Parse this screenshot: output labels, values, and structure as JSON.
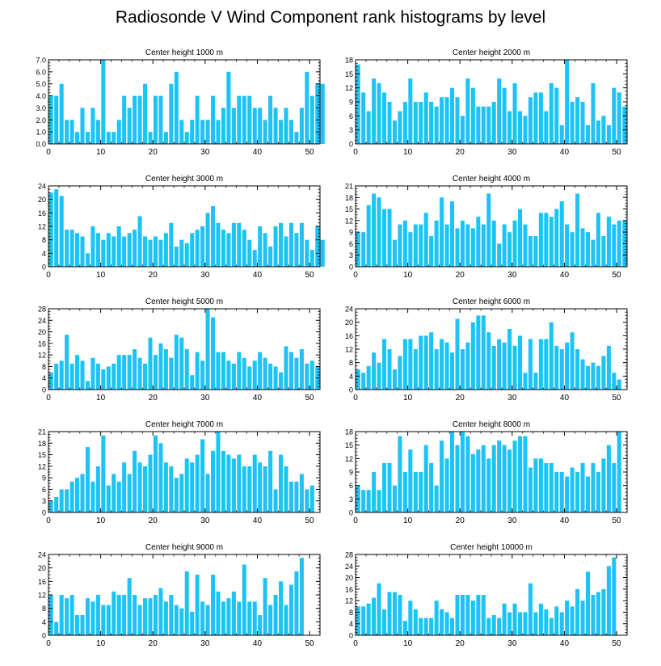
{
  "title": "Radiosonde V Wind Component rank histograms by level",
  "colors": {
    "bar": "#1ec3f5",
    "axis": "#000000",
    "background": "#ffffff"
  },
  "chart_data": [
    {
      "type": "bar",
      "title": "Center height 1000 m",
      "xlim": [
        0,
        52
      ],
      "ylim": [
        0,
        7
      ],
      "xticks": [
        0,
        10,
        20,
        30,
        40,
        50
      ],
      "yticks": [
        0,
        1,
        2,
        3,
        4,
        5,
        6,
        7
      ],
      "ytick_labels": [
        "0.0",
        "1.0",
        "2.0",
        "3.0",
        "4.0",
        "5.0",
        "6.0",
        "7.0"
      ],
      "values": [
        4,
        4,
        5,
        2,
        2,
        1,
        3,
        1,
        3,
        2,
        7,
        1,
        1,
        2,
        4,
        3,
        4,
        4,
        5,
        1,
        4,
        4,
        1,
        5,
        6,
        2,
        1,
        2,
        4,
        2,
        2,
        4,
        2,
        3,
        6,
        3,
        4,
        4,
        4,
        3,
        3,
        2,
        4,
        3,
        2,
        3,
        2,
        1,
        3,
        6,
        4,
        5,
        5
      ]
    },
    {
      "type": "bar",
      "title": "Center height 2000 m",
      "xlim": [
        0,
        52
      ],
      "ylim": [
        0,
        18
      ],
      "xticks": [
        0,
        10,
        20,
        30,
        40,
        50
      ],
      "yticks": [
        0,
        3,
        6,
        9,
        12,
        15,
        18
      ],
      "ytick_labels": [
        "0",
        "3",
        "6",
        "9",
        "12",
        "15",
        "18"
      ],
      "values": [
        17,
        11,
        7,
        14,
        13,
        11,
        9,
        5,
        7,
        9,
        14,
        9,
        9,
        11,
        9,
        8,
        10,
        10,
        12,
        10,
        6,
        14,
        12,
        8,
        8,
        8,
        9,
        14,
        12,
        7,
        13,
        7,
        6,
        10,
        11,
        11,
        7,
        13,
        12,
        4,
        18,
        9,
        10,
        9,
        4,
        13,
        5,
        6,
        4,
        12,
        11,
        8
      ]
    },
    {
      "type": "bar",
      "title": "Center height 3000 m",
      "xlim": [
        0,
        52
      ],
      "ylim": [
        0,
        24
      ],
      "xticks": [
        0,
        10,
        20,
        30,
        40,
        50
      ],
      "yticks": [
        0,
        4,
        8,
        12,
        16,
        20,
        24
      ],
      "ytick_labels": [
        "0",
        "4",
        "8",
        "12",
        "16",
        "20",
        "24"
      ],
      "values": [
        22,
        23,
        21,
        11,
        11,
        10,
        9,
        4,
        12,
        10,
        8,
        10,
        9,
        12,
        9,
        10,
        11,
        15,
        9,
        8,
        9,
        8,
        10,
        13,
        6,
        8,
        7,
        10,
        11,
        12,
        16,
        18,
        13,
        11,
        10,
        13,
        13,
        11,
        8,
        5,
        12,
        10,
        6,
        12,
        13,
        9,
        13,
        10,
        13,
        8,
        5,
        12,
        8
      ]
    },
    {
      "type": "bar",
      "title": "Center height 4000 m",
      "xlim": [
        0,
        52
      ],
      "ylim": [
        0,
        21
      ],
      "xticks": [
        0,
        10,
        20,
        30,
        40,
        50
      ],
      "yticks": [
        0,
        3,
        6,
        9,
        12,
        15,
        18,
        21
      ],
      "ytick_labels": [
        "0",
        "3",
        "6",
        "9",
        "12",
        "15",
        "18",
        "21"
      ],
      "values": [
        9,
        9,
        16,
        19,
        18,
        15,
        15,
        7,
        11,
        12,
        9,
        11,
        11,
        14,
        8,
        12,
        18,
        11,
        17,
        10,
        12,
        11,
        10,
        13,
        11,
        19,
        12,
        6,
        11,
        9,
        12,
        15,
        11,
        8,
        8,
        14,
        14,
        13,
        15,
        17,
        11,
        9,
        19,
        10,
        9,
        7,
        14,
        8,
        13,
        11,
        12,
        12
      ]
    },
    {
      "type": "bar",
      "title": "Center height 5000 m",
      "xlim": [
        0,
        52
      ],
      "ylim": [
        0,
        28
      ],
      "xticks": [
        0,
        10,
        20,
        30,
        40,
        50
      ],
      "yticks": [
        0,
        4,
        8,
        12,
        16,
        20,
        24,
        28
      ],
      "ytick_labels": [
        "0",
        "4",
        "8",
        "12",
        "16",
        "20",
        "24",
        "28"
      ],
      "values": [
        6,
        9,
        10,
        19,
        9,
        12,
        10,
        3,
        11,
        9,
        7,
        8,
        9,
        12,
        12,
        12,
        14,
        11,
        9,
        18,
        12,
        16,
        14,
        11,
        19,
        18,
        14,
        5,
        13,
        10,
        28,
        25,
        13,
        13,
        10,
        9,
        13,
        11,
        8,
        10,
        13,
        11,
        9,
        8,
        6,
        15,
        13,
        11,
        14,
        9,
        10,
        8
      ]
    },
    {
      "type": "bar",
      "title": "Center height 6000 m",
      "xlim": [
        0,
        52
      ],
      "ylim": [
        0,
        24
      ],
      "xticks": [
        0,
        10,
        20,
        30,
        40,
        50
      ],
      "yticks": [
        0,
        4,
        8,
        12,
        16,
        20,
        24
      ],
      "ytick_labels": [
        "0",
        "4",
        "8",
        "12",
        "16",
        "20",
        "24"
      ],
      "values": [
        6,
        5,
        7,
        11,
        8,
        15,
        12,
        6,
        10,
        15,
        15,
        12,
        16,
        16,
        17,
        12,
        15,
        14,
        11,
        21,
        12,
        14,
        20,
        22,
        22,
        17,
        13,
        15,
        14,
        18,
        13,
        16,
        5,
        15,
        5,
        15,
        15,
        20,
        13,
        12,
        14,
        17,
        12,
        9,
        7,
        8,
        7,
        10,
        13,
        5,
        3
      ]
    },
    {
      "type": "bar",
      "title": "Center height 7000 m",
      "xlim": [
        0,
        52
      ],
      "ylim": [
        0,
        21
      ],
      "xticks": [
        0,
        10,
        20,
        30,
        40,
        50
      ],
      "yticks": [
        0,
        3,
        6,
        9,
        12,
        15,
        18,
        21
      ],
      "ytick_labels": [
        "0",
        "3",
        "6",
        "9",
        "12",
        "15",
        "18",
        "21"
      ],
      "values": [
        3,
        4,
        6,
        6,
        8,
        9,
        10,
        17,
        8,
        12,
        20,
        7,
        10,
        8,
        13,
        10,
        16,
        13,
        12,
        15,
        20,
        18,
        13,
        12,
        9,
        10,
        14,
        13,
        15,
        19,
        10,
        16,
        21,
        16,
        15,
        14,
        15,
        12,
        12,
        15,
        13,
        12,
        16,
        6,
        15,
        12,
        8,
        8,
        10,
        6,
        7
      ]
    },
    {
      "type": "bar",
      "title": "Center height 8000 m",
      "xlim": [
        0,
        52
      ],
      "ylim": [
        0,
        18
      ],
      "xticks": [
        0,
        10,
        20,
        30,
        40,
        50
      ],
      "yticks": [
        0,
        3,
        6,
        9,
        12,
        15,
        18
      ],
      "ytick_labels": [
        "0",
        "3",
        "6",
        "9",
        "12",
        "15",
        "18"
      ],
      "values": [
        6,
        5,
        5,
        9,
        5,
        11,
        11,
        6,
        17,
        9,
        14,
        9,
        9,
        15,
        11,
        6,
        16,
        12,
        18,
        15,
        18,
        17,
        13,
        14,
        15,
        12,
        15,
        16,
        15,
        14,
        16,
        17,
        17,
        10,
        12,
        12,
        11,
        11,
        9,
        9,
        8,
        10,
        9,
        11,
        8,
        11,
        9,
        12,
        15,
        11,
        18
      ]
    },
    {
      "type": "bar",
      "title": "Center height 9000 m",
      "xlim": [
        0,
        52
      ],
      "ylim": [
        0,
        24
      ],
      "xticks": [
        0,
        10,
        20,
        30,
        40,
        50
      ],
      "yticks": [
        0,
        4,
        8,
        12,
        16,
        20,
        24
      ],
      "ytick_labels": [
        "0",
        "4",
        "8",
        "12",
        "16",
        "20",
        "24"
      ],
      "values": [
        12,
        4,
        12,
        11,
        12,
        6,
        6,
        11,
        10,
        12,
        9,
        9,
        13,
        12,
        12,
        17,
        12,
        9,
        11,
        11,
        12,
        14,
        10,
        12,
        9,
        8,
        19,
        7,
        18,
        10,
        9,
        18,
        13,
        10,
        11,
        13,
        10,
        21,
        10,
        10,
        6,
        17,
        9,
        12,
        16,
        9,
        15,
        19,
        23
      ]
    },
    {
      "type": "bar",
      "title": "Center height 10000 m",
      "xlim": [
        0,
        52
      ],
      "ylim": [
        0,
        28
      ],
      "xticks": [
        0,
        10,
        20,
        30,
        40,
        50
      ],
      "yticks": [
        0,
        4,
        8,
        12,
        16,
        20,
        24,
        28
      ],
      "ytick_labels": [
        "0",
        "4",
        "8",
        "12",
        "16",
        "20",
        "24",
        "28"
      ],
      "values": [
        10,
        10,
        11,
        13,
        18,
        9,
        15,
        15,
        14,
        5,
        12,
        9,
        6,
        6,
        6,
        12,
        9,
        8,
        6,
        14,
        14,
        14,
        12,
        14,
        14,
        6,
        7,
        6,
        11,
        8,
        11,
        8,
        8,
        18,
        8,
        11,
        9,
        6,
        10,
        8,
        12,
        10,
        16,
        12,
        22,
        14,
        15,
        16,
        24,
        27
      ]
    }
  ]
}
